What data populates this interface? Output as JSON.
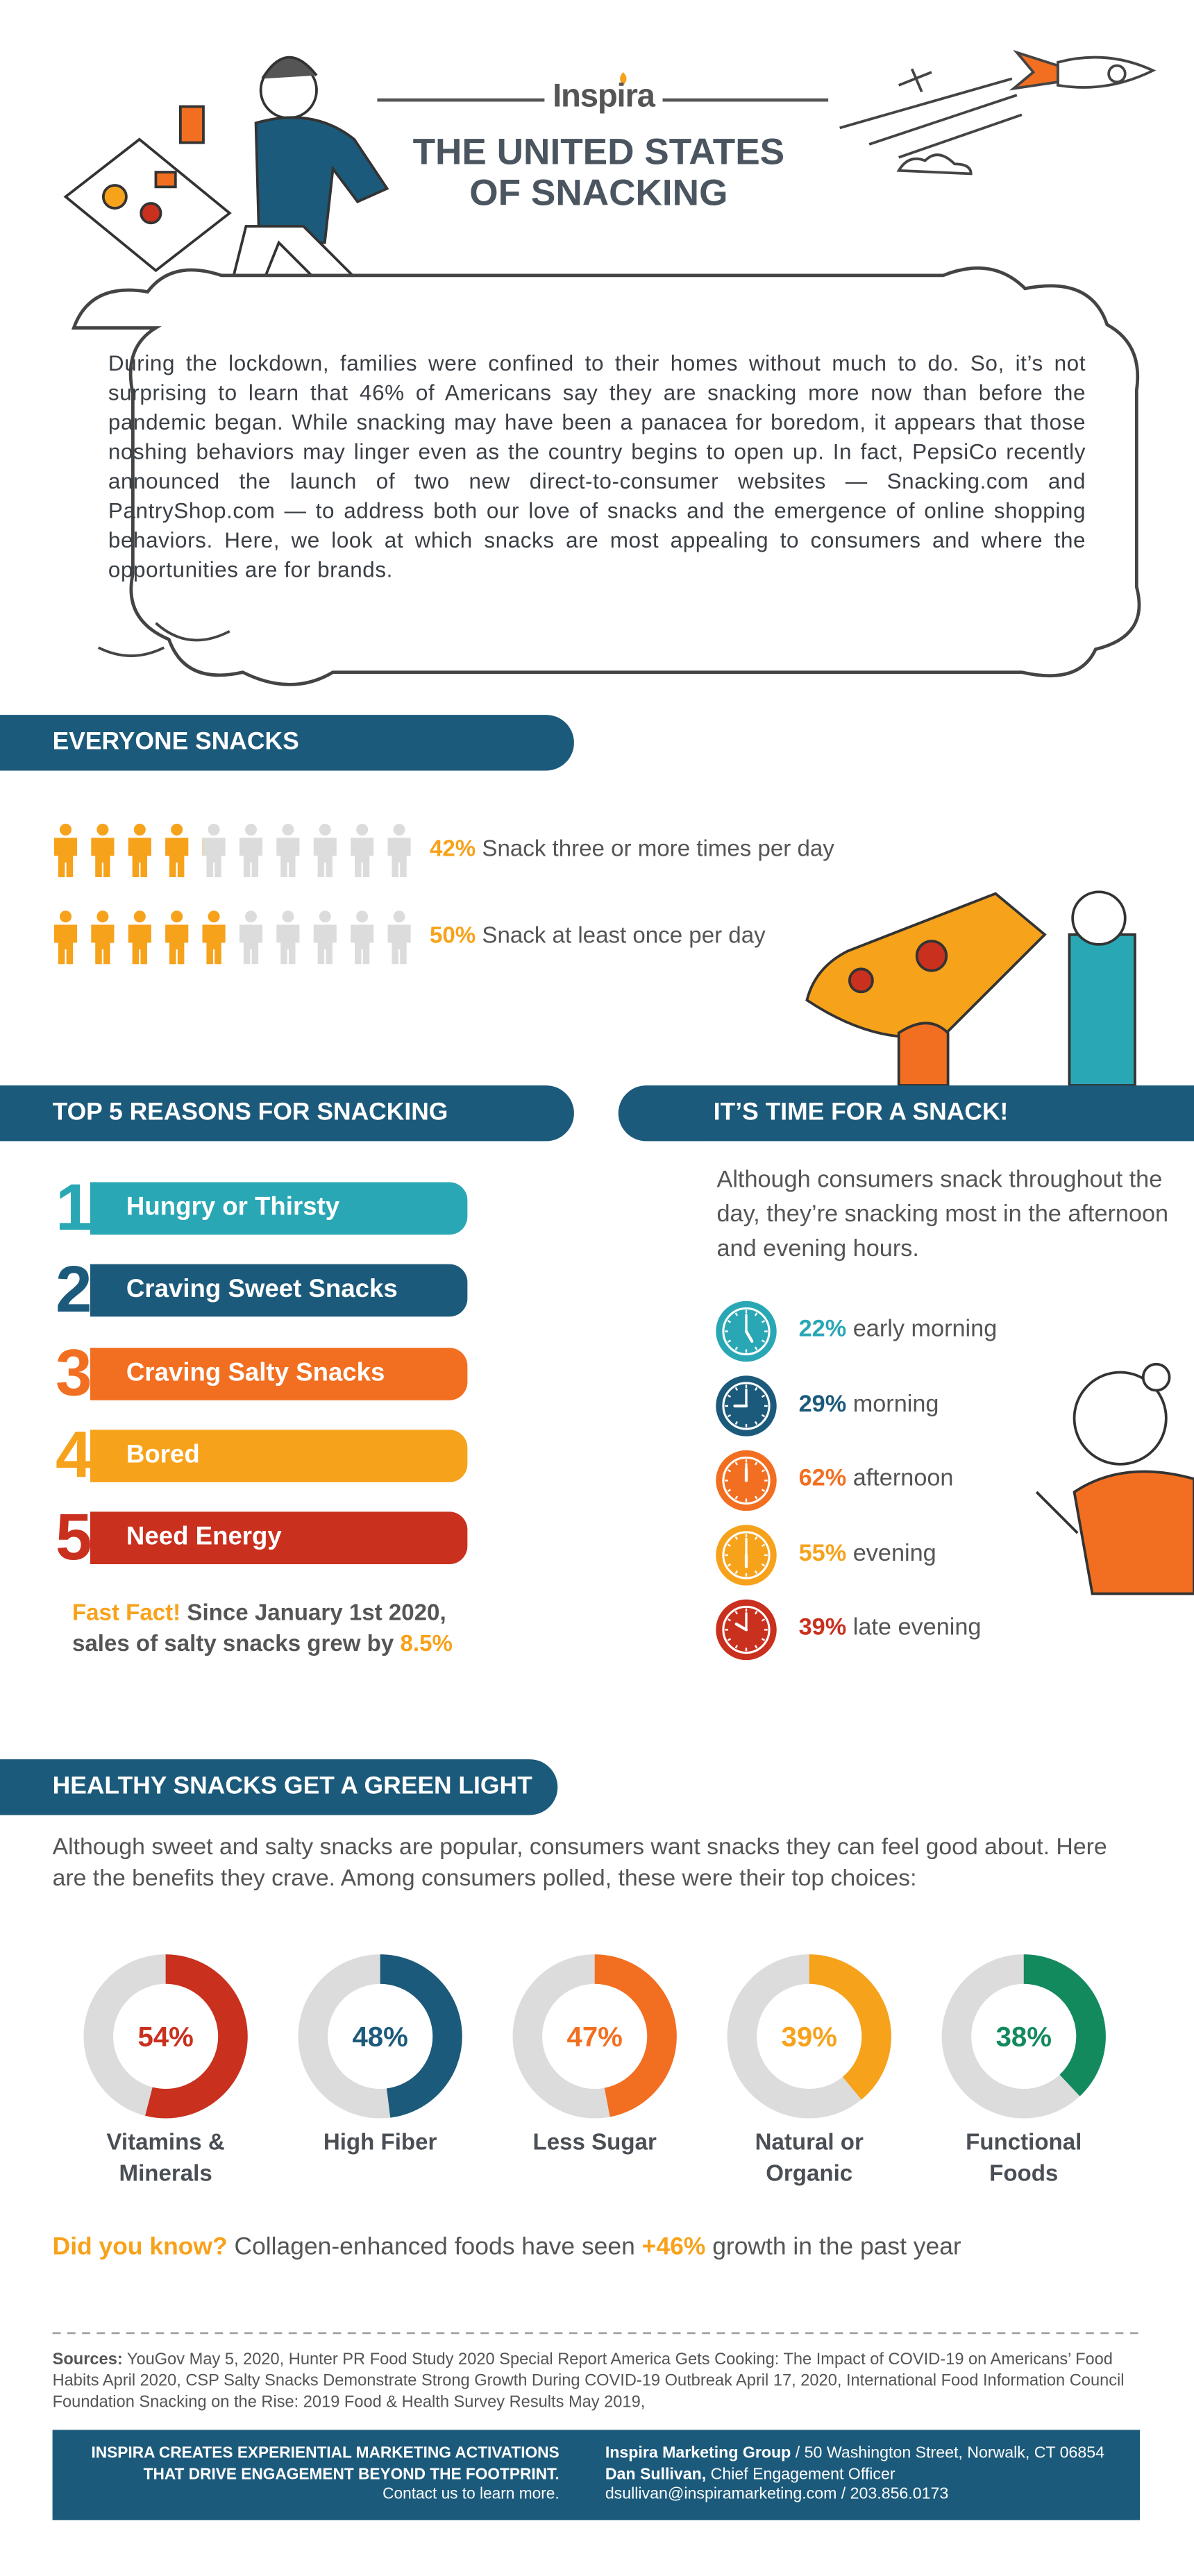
{
  "header": {
    "brand": "Inspira",
    "title_line1": "THE UNITED STATES",
    "title_line2": "OF SNACKING"
  },
  "intro": "During the lockdown, families were confined to their homes without much to do. So, it’s not surprising to learn that 46% of Americans say they are snacking more now than before the pandemic began. While snacking may have been a panacea for boredom, it appears that those noshing behaviors may linger even as the country begins to open up. In fact, PepsiCo recently announced the launch of two new direct-to-consumer websites — Snacking.com and PantryShop.com — to address both our love of snacks and the emergence of online shopping behaviors. Here, we look at which snacks are most appealing to consumers and where the opportunities are for brands.",
  "everyone_snacks": {
    "heading": "EVERYONE SNACKS",
    "rows": [
      {
        "value": 42,
        "label": "42%",
        "text": "Snack three or more times per day"
      },
      {
        "value": 50,
        "label": "50%",
        "text": "Snack at least once per day"
      }
    ]
  },
  "reasons": {
    "heading": "TOP 5 REASONS FOR SNACKING",
    "items": [
      {
        "number": 1,
        "text": "Hungry or Thirsty"
      },
      {
        "number": 2,
        "text": "Craving Sweet Snacks"
      },
      {
        "number": 3,
        "text": "Craving Salty Snacks"
      },
      {
        "number": 4,
        "text": "Bored"
      },
      {
        "number": 5,
        "text": "Need Energy"
      }
    ],
    "fast_fact": {
      "lead": "Fast Fact!",
      "text": "Since January 1st 2020, sales of salty snacks grew by",
      "value": "8.5%"
    }
  },
  "snack_time": {
    "heading": "IT’S TIME FOR A SNACK!",
    "intro": "Although consumers snack throughout the day, they’re snacking most in the afternoon and evening hours.",
    "times": [
      {
        "value": 22,
        "label": "22%",
        "text": "early morning"
      },
      {
        "value": 29,
        "label": "29%",
        "text": "morning"
      },
      {
        "value": 62,
        "label": "62%",
        "text": "afternoon"
      },
      {
        "value": 55,
        "label": "55%",
        "text": "evening"
      },
      {
        "value": 39,
        "label": "39%",
        "text": "late evening"
      }
    ]
  },
  "healthy": {
    "heading": "HEALTHY SNACKS GET A GREEN LIGHT",
    "intro": "Although sweet and salty snacks are popular, consumers want snacks they can feel good about. Here are the benefits they crave. Among consumers polled, these were their top choices:",
    "items": [
      {
        "value": 54,
        "label": "54%",
        "name": "Vitamins & Minerals"
      },
      {
        "value": 48,
        "label": "48%",
        "name": "High Fiber"
      },
      {
        "value": 47,
        "label": "47%",
        "name": "Less Sugar"
      },
      {
        "value": 39,
        "label": "39%",
        "name": "Natural or Organic"
      },
      {
        "value": 38,
        "label": "38%",
        "name": "Functional Foods"
      }
    ],
    "did_you_know": {
      "lead": "Did you know?",
      "text_before": "Collagen-enhanced foods have seen",
      "highlight": "+46%",
      "text_after": "growth in the past year"
    }
  },
  "sources": {
    "lead": "Sources:",
    "text": "YouGov May 5, 2020, Hunter PR Food Study 2020 Special Report America Gets Cooking: The Impact of COVID-19 on Americans’ Food Habits April 2020, CSP Salty Snacks Demonstrate Strong Growth During COVID-19 Outbreak April 17, 2020, International Food Information Council Foundation Snacking on the Rise: 2019 Food & Health Survey Results May 2019,"
  },
  "footer": {
    "left_line1": "INSPIRA CREATES EXPERIENTIAL MARKETING ACTIVATIONS",
    "left_line2": "THAT DRIVE ENGAGEMENT BEYOND THE FOOTPRINT.",
    "left_line3": "Contact us to learn more.",
    "company": "Inspira Marketing Group",
    "address": "/ 50 Washington Street, Norwalk, CT 06854",
    "contact_name": "Dan Sullivan,",
    "contact_title": "Chief Engagement Officer",
    "contact_line": "dsullivan@inspiramarketing.com / 203.856.0173"
  }
}
